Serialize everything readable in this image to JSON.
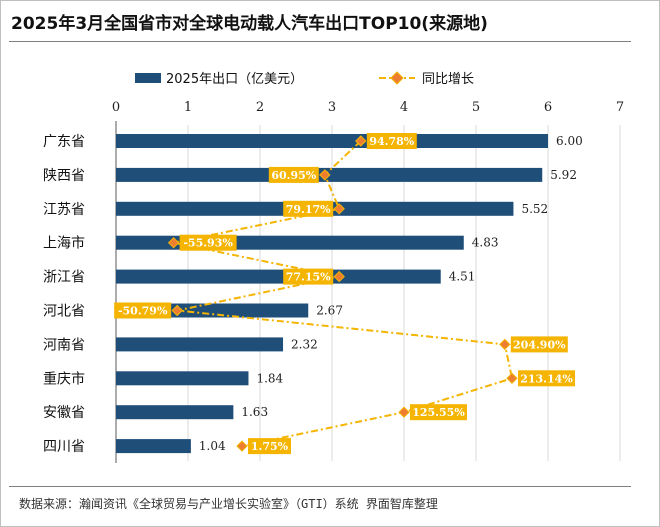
{
  "title": "2025年3月全国省市对全球电动载人汽车出口TOP10(来源地)",
  "source_note": "数据来源：瀚闻资讯《全球贸易与产业增长实验室》（GTI）系统  界面智库整理",
  "colors": {
    "bar": "#1f4e79",
    "growth_line": "#f4b400",
    "growth_label_bg": "#f4b400",
    "marker_fill": "#ed7d31",
    "grid": "#d9d9d9"
  },
  "chart_data": {
    "type": "bar",
    "orientation": "horizontal",
    "categories": [
      "广东省",
      "陕西省",
      "江苏省",
      "上海市",
      "浙江省",
      "河北省",
      "河南省",
      "重庆市",
      "安徽省",
      "四川省"
    ],
    "series": [
      {
        "name": "2025年出口（亿美元）",
        "type": "bar",
        "values": [
          6.0,
          5.92,
          5.52,
          4.83,
          4.51,
          2.67,
          2.32,
          1.84,
          1.63,
          1.04
        ],
        "labels": [
          "6.00",
          "5.92",
          "5.52",
          "4.83",
          "4.51",
          "2.67",
          "2.32",
          "1.84",
          "1.63",
          "1.04"
        ]
      },
      {
        "name": "同比增长",
        "type": "line",
        "values": [
          94.78,
          60.95,
          79.17,
          -55.93,
          77.15,
          -50.79,
          204.9,
          213.14,
          125.55,
          1.75
        ],
        "labels": [
          "94.78%",
          "60.95%",
          "79.17%",
          "-55.93%",
          "77.15%",
          "-50.79%",
          "204.90%",
          "213.14%",
          "125.55%",
          "1.75%"
        ]
      }
    ],
    "x_ticks": [
      "0",
      "1",
      "2",
      "3",
      "4",
      "5",
      "6",
      "7"
    ],
    "xlim": [
      0,
      7
    ],
    "growth_marker_axis": [
      3.4,
      2.9,
      3.1,
      0.8,
      3.1,
      0.85,
      5.4,
      5.5,
      4.0,
      1.75
    ],
    "legend_position": "top",
    "grid": true
  }
}
